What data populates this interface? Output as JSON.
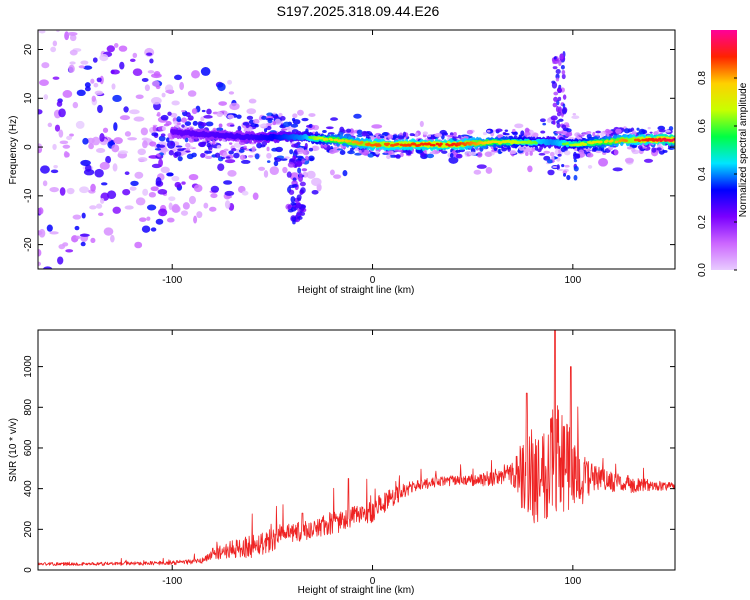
{
  "title": "S197.2025.318.09.44.E26",
  "chart_data": [
    {
      "type": "heatmap",
      "title": "S197.2025.318.09.44.E26",
      "xlabel": "Height of straight line (km)",
      "ylabel": "Frequency (Hz)",
      "xlim": [
        -167,
        151
      ],
      "ylim": [
        -25,
        24
      ],
      "xticks": [
        -100,
        0,
        100
      ],
      "xtick_labels": [
        "-100",
        "0",
        "100"
      ],
      "yticks": [
        -20,
        -10,
        0,
        10,
        20
      ],
      "ytick_labels": [
        "-20",
        "-10",
        "0",
        "10",
        "20"
      ],
      "colorbar": {
        "label": "Normalized spectral amplitude",
        "range": [
          0.0,
          1.0
        ],
        "ticks": [
          0.0,
          0.2,
          0.4,
          0.6,
          0.8
        ],
        "tick_labels": [
          "0.0",
          "0.2",
          "0.4",
          "0.6",
          "0.8"
        ],
        "colors": [
          "#e8ccff",
          "#cc66ff",
          "#7a00ff",
          "#0000ff",
          "#00e5ff",
          "#00ff44",
          "#c8ff00",
          "#ffd000",
          "#ff2200",
          "#ff0099"
        ]
      },
      "ridge": {
        "description_x": [
          -100,
          -60,
          -35,
          -20,
          0,
          40,
          60,
          90,
          100,
          130,
          151
        ],
        "frequency": [
          3,
          2,
          2,
          1.5,
          0.5,
          0.5,
          1,
          1,
          0.5,
          1.5,
          1.5
        ],
        "amplitude": [
          0.3,
          0.35,
          0.5,
          0.7,
          0.8,
          0.85,
          0.7,
          0.5,
          0.6,
          0.8,
          0.9
        ]
      }
    },
    {
      "type": "line",
      "xlabel": "Height of straight line (km)",
      "ylabel": "SNR (10 * v/v)",
      "xlim": [
        -167,
        151
      ],
      "ylim": [
        0,
        1180
      ],
      "xticks": [
        -100,
        0,
        100
      ],
      "xtick_labels": [
        "-100",
        "0",
        "100"
      ],
      "yticks": [
        0,
        200,
        400,
        600,
        800,
        1000
      ],
      "ytick_labels": [
        "0",
        "200",
        "400",
        "600",
        "800",
        "1000"
      ],
      "series": [
        {
          "name": "SNR",
          "color": "#ee2222",
          "envelope_x": [
            -167,
            -140,
            -100,
            -85,
            -80,
            -70,
            -60,
            -50,
            -40,
            -30,
            -20,
            -10,
            0,
            10,
            20,
            30,
            40,
            50,
            60,
            70,
            75,
            80,
            85,
            90,
            95,
            100,
            110,
            120,
            130,
            140,
            151
          ],
          "envelope_y": [
            30,
            30,
            35,
            45,
            80,
            100,
            120,
            150,
            180,
            200,
            230,
            260,
            290,
            360,
            410,
            430,
            440,
            440,
            450,
            480,
            460,
            480,
            470,
            600,
            520,
            470,
            450,
            430,
            420,
            415,
            410
          ],
          "spread_y": [
            8,
            8,
            10,
            15,
            30,
            45,
            60,
            60,
            50,
            50,
            60,
            50,
            60,
            50,
            30,
            25,
            25,
            30,
            40,
            60,
            180,
            250,
            250,
            320,
            280,
            200,
            70,
            50,
            40,
            25,
            20
          ],
          "peaks": [
            {
              "x": 91,
              "y": 1180
            },
            {
              "x": 99,
              "y": 1000
            },
            {
              "x": 77,
              "y": 870
            },
            {
              "x": -12,
              "y": 450
            },
            {
              "x": -35,
              "y": 280
            }
          ]
        }
      ]
    }
  ]
}
